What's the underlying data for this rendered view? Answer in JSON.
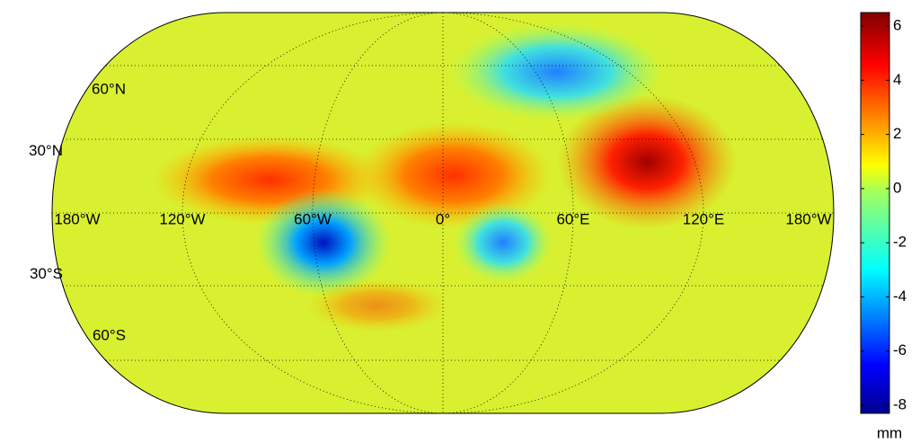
{
  "map": {
    "lat_labels": [
      {
        "value": 60,
        "label": "60°N"
      },
      {
        "value": 30,
        "label": "30°N"
      },
      {
        "value": -30,
        "label": "30°S"
      },
      {
        "value": -60,
        "label": "60°S"
      }
    ],
    "lon_labels": [
      {
        "value": -180,
        "label": "180°W"
      },
      {
        "value": -120,
        "label": "120°W"
      },
      {
        "value": -60,
        "label": "60°W"
      },
      {
        "value": 0,
        "label": "0°"
      },
      {
        "value": 60,
        "label": "60°E"
      },
      {
        "value": 120,
        "label": "120°E"
      },
      {
        "value": 180,
        "label": "180°W"
      }
    ]
  },
  "colorbar": {
    "lim": [
      -8.3,
      6.5
    ],
    "ticks": [
      -8,
      -6,
      -4,
      -2,
      0,
      2,
      4,
      6
    ],
    "unit": "mm"
  }
}
